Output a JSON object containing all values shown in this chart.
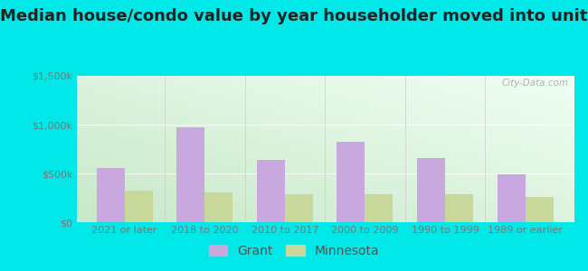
{
  "title": "Median house/condo value by year householder moved into unit",
  "categories": [
    "2021 or later",
    "2018 to 2020",
    "2010 to 2017",
    "2000 to 2009",
    "1990 to 1999",
    "1989 or earlier"
  ],
  "grant_values": [
    560000,
    970000,
    640000,
    820000,
    660000,
    490000
  ],
  "minnesota_values": [
    320000,
    310000,
    285000,
    285000,
    290000,
    255000
  ],
  "bar_color_grant": "#c9a8e0",
  "bar_color_minnesota": "#c8d89a",
  "background_outer": "#00e8e8",
  "ylim": [
    0,
    1500000
  ],
  "yticks": [
    0,
    500000,
    1000000,
    1500000
  ],
  "ytick_labels": [
    "$0",
    "$500k",
    "$1,000k",
    "$1,500k"
  ],
  "legend_labels": [
    "Grant",
    "Minnesota"
  ],
  "watermark": "City-Data.com",
  "bar_width": 0.35,
  "title_fontsize": 13,
  "tick_fontsize": 8,
  "legend_fontsize": 10,
  "grid_color": "#dddddd",
  "divider_color": "#cccccc",
  "tick_color": "#777777"
}
